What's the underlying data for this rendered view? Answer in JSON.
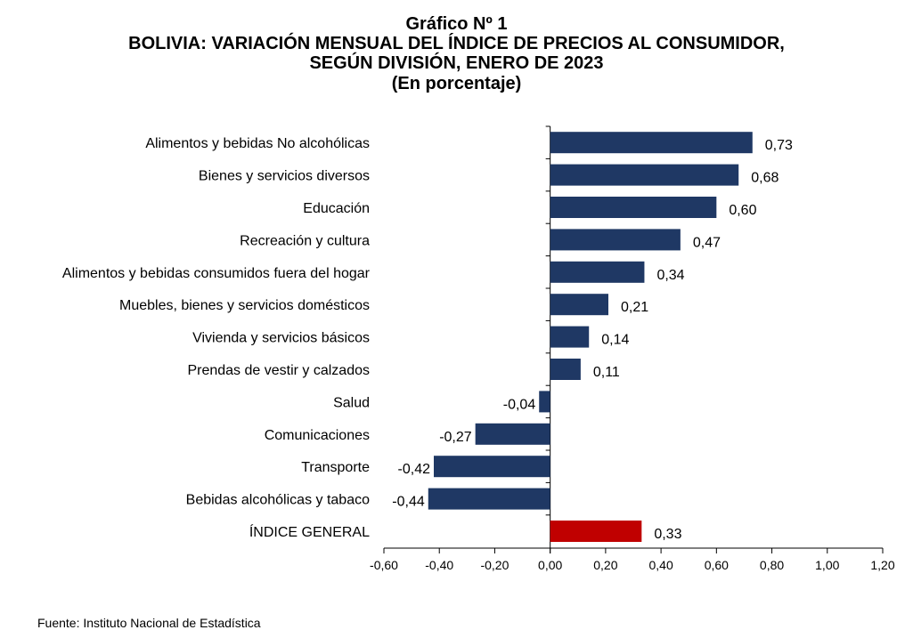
{
  "header": {
    "title": "Gráfico Nº 1",
    "subtitle_line1": "BOLIVIA: VARIACIÓN MENSUAL DEL ÍNDICE DE PRECIOS AL CONSUMIDOR,",
    "subtitle_line2": "SEGÚN DIVISIÓN, ENERO DE 2023",
    "unit": "(En porcentaje)"
  },
  "source": "Fuente: Instituto Nacional de Estadística",
  "chart_data": {
    "type": "bar",
    "orientation": "horizontal",
    "title": "BOLIVIA: VARIACIÓN MENSUAL DEL ÍNDICE DE PRECIOS AL CONSUMIDOR, SEGÚN DIVISIÓN, ENERO DE 2023",
    "categories": [
      "Alimentos y bebidas No alcohólicas",
      "Bienes y servicios diversos",
      "Educación",
      "Recreación y cultura",
      "Alimentos y bebidas consumidos fuera del hogar",
      "Muebles, bienes y servicios domésticos",
      "Vivienda y servicios básicos",
      "Prendas de vestir y calzados",
      "Salud",
      "Comunicaciones",
      "Transporte",
      "Bebidas alcohólicas y tabaco",
      "ÍNDICE GENERAL"
    ],
    "values": [
      0.73,
      0.68,
      0.6,
      0.47,
      0.34,
      0.21,
      0.14,
      0.11,
      -0.04,
      -0.27,
      -0.42,
      -0.44,
      0.33
    ],
    "value_labels": [
      "0,73",
      "0,68",
      "0,60",
      "0,47",
      "0,34",
      "0,21",
      "0,14",
      "0,11",
      "-0,04",
      "-0,27",
      "-0,42",
      "-0,44",
      "0,33"
    ],
    "highlight_index": 12,
    "xlim": [
      -0.6,
      1.2
    ],
    "x_ticks": [
      -0.6,
      -0.4,
      -0.2,
      0,
      0.2,
      0.4,
      0.6,
      0.8,
      1.0,
      1.2
    ],
    "x_tick_labels": [
      "-0,60",
      "-0,40",
      "-0,20",
      "0,00",
      "0,20",
      "0,40",
      "0,60",
      "0,80",
      "1,00",
      "1,20"
    ],
    "grid": false,
    "colors": {
      "bar": "#1f3864",
      "highlight": "#c00000"
    }
  }
}
